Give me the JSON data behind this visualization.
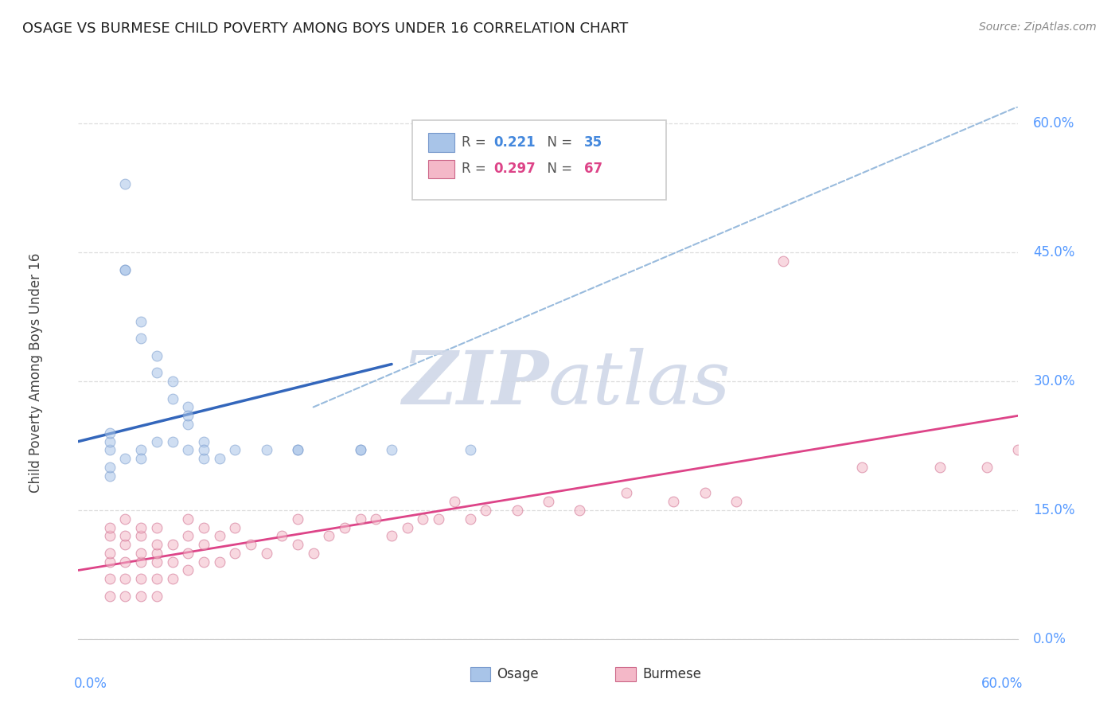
{
  "title": "OSAGE VS BURMESE CHILD POVERTY AMONG BOYS UNDER 16 CORRELATION CHART",
  "source": "Source: ZipAtlas.com",
  "ylabel": "Child Poverty Among Boys Under 16",
  "ytick_values": [
    0.0,
    15.0,
    30.0,
    45.0,
    60.0
  ],
  "xlim": [
    0.0,
    60.0
  ],
  "ylim": [
    0.0,
    62.0
  ],
  "legend_r_osage": "R = 0.221",
  "legend_n_osage": "N = 35",
  "legend_r_burmese": "R = 0.297",
  "legend_n_burmese": "N = 67",
  "osage_color": "#a8c4e8",
  "burmese_color": "#f4b8c8",
  "osage_line_color": "#3366bb",
  "burmese_line_color": "#dd4488",
  "dashed_line_color": "#99bbdd",
  "watermark_color": "#d0d8e8",
  "osage_x": [
    3,
    3,
    3,
    4,
    4,
    5,
    5,
    6,
    6,
    7,
    7,
    7,
    8,
    8,
    2,
    2,
    2,
    2,
    2,
    3,
    4,
    4,
    5,
    6,
    7,
    8,
    9,
    10,
    12,
    14,
    18,
    20,
    25,
    18,
    14
  ],
  "osage_y": [
    53,
    43,
    43,
    37,
    35,
    33,
    31,
    30,
    28,
    27,
    25,
    26,
    23,
    21,
    22,
    23,
    24,
    19,
    20,
    21,
    22,
    21,
    23,
    23,
    22,
    22,
    21,
    22,
    22,
    22,
    22,
    22,
    22,
    22,
    22
  ],
  "burmese_x": [
    2,
    2,
    2,
    2,
    2,
    2,
    3,
    3,
    3,
    3,
    3,
    3,
    4,
    4,
    4,
    4,
    4,
    4,
    5,
    5,
    5,
    5,
    5,
    5,
    6,
    6,
    6,
    7,
    7,
    7,
    7,
    8,
    8,
    8,
    9,
    9,
    10,
    10,
    11,
    12,
    13,
    14,
    14,
    15,
    16,
    17,
    18,
    19,
    20,
    21,
    22,
    23,
    24,
    25,
    26,
    28,
    30,
    32,
    35,
    38,
    40,
    42,
    45,
    50,
    55,
    58,
    60
  ],
  "burmese_y": [
    5,
    7,
    9,
    10,
    12,
    13,
    5,
    7,
    9,
    11,
    12,
    14,
    5,
    7,
    9,
    10,
    12,
    13,
    5,
    7,
    9,
    10,
    11,
    13,
    7,
    9,
    11,
    8,
    10,
    12,
    14,
    9,
    11,
    13,
    9,
    12,
    10,
    13,
    11,
    10,
    12,
    11,
    14,
    10,
    12,
    13,
    14,
    14,
    12,
    13,
    14,
    14,
    16,
    14,
    15,
    15,
    16,
    15,
    17,
    16,
    17,
    16,
    44,
    20,
    20,
    20,
    22
  ],
  "osage_trend": [
    0,
    20,
    23,
    32
  ],
  "burmese_trend": [
    0,
    60,
    8,
    26
  ],
  "dashed_trend": [
    15,
    60,
    27,
    62
  ],
  "background_color": "#ffffff",
  "grid_color": "#dddddd",
  "marker_size": 85,
  "marker_alpha": 0.55
}
